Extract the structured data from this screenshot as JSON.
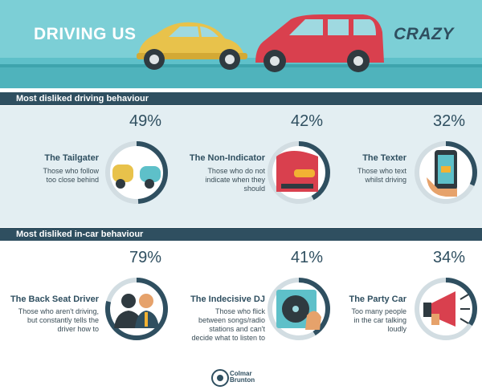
{
  "header": {
    "title_left": "DRIVING US",
    "title_right": "CRAZY"
  },
  "sections": [
    {
      "title": "Most disliked driving behaviour",
      "items": [
        {
          "percent": "49%",
          "value": 0.49,
          "name": "The Tailgater",
          "desc_lines": [
            "Those who follow",
            "too close behind"
          ],
          "icon": "tailgating-cars-icon"
        },
        {
          "percent": "42%",
          "value": 0.42,
          "name": "The Non-Indicator",
          "desc_lines": [
            "Those who do not",
            "indicate when they",
            "should"
          ],
          "icon": "car-indicator-icon"
        },
        {
          "percent": "32%",
          "value": 0.32,
          "name": "The Texter",
          "desc_lines": [
            "Those who text",
            "whilst driving"
          ],
          "icon": "phone-texting-icon"
        }
      ]
    },
    {
      "title": "Most disliked in-car behaviour",
      "items": [
        {
          "percent": "79%",
          "value": 0.79,
          "name": "The Back Seat Driver",
          "desc_lines": [
            "Those who aren't driving,",
            "but constantly tells the",
            "driver how to"
          ],
          "icon": "passengers-icon"
        },
        {
          "percent": "41%",
          "value": 0.41,
          "name": "The Indecisive DJ",
          "desc_lines": [
            "Those who flick",
            "between songs/radio",
            "stations and can't",
            "decide what to listen to"
          ],
          "icon": "turntable-icon"
        },
        {
          "percent": "34%",
          "value": 0.34,
          "name": "The Party Car",
          "desc_lines": [
            "Too many people",
            "in the car talking",
            "loudly"
          ],
          "icon": "megaphone-icon"
        }
      ]
    }
  ],
  "footer": {
    "logo_line1": "Colmar",
    "logo_line2": "Brunton"
  },
  "colors": {
    "ring_fill": "#2f4f60",
    "ring_track": "#ffffff",
    "accent": "#5ec0c9"
  }
}
